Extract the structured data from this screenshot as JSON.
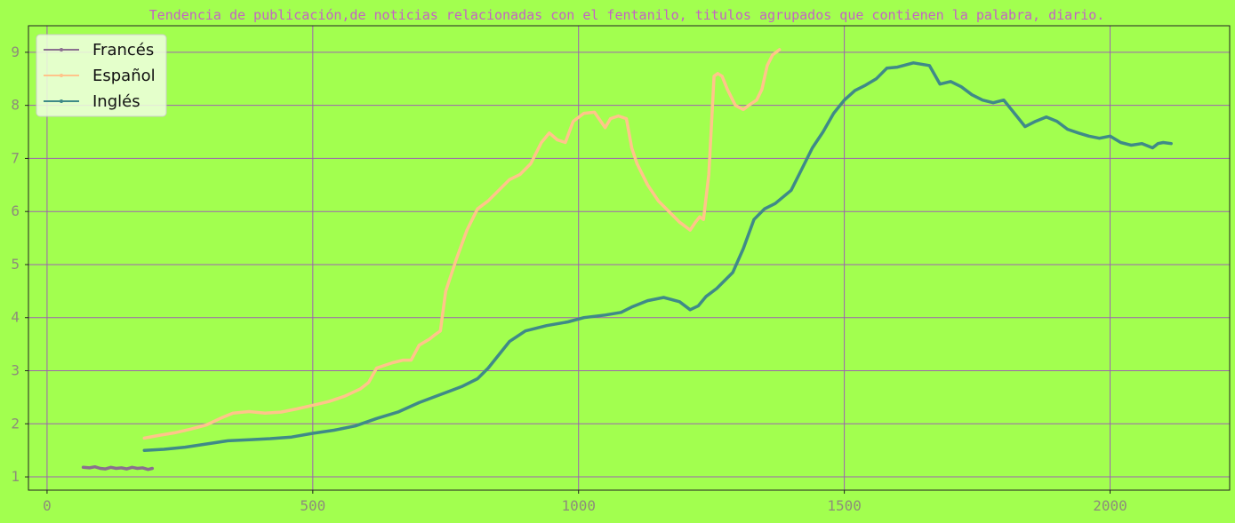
{
  "colors": {
    "background": "#a2ff4f",
    "plot_background": "#a2ff4f",
    "grid": "#9e63b0",
    "frame": "#222222",
    "tick_label": "#8d8d7a",
    "title": "#c462c4",
    "legend_background": "#f0ffe0"
  },
  "chart_data": {
    "type": "line",
    "title": "Tendencia de publicación,de noticias relacionadas con el fentanilo, titulos agrupados que contienen la palabra, diario.",
    "xlabel": "",
    "ylabel": "",
    "xlim": [
      -35,
      2225
    ],
    "ylim": [
      0.75,
      9.5
    ],
    "xticks": [
      0,
      500,
      1000,
      1500,
      2000
    ],
    "yticks": [
      1,
      2,
      3,
      4,
      5,
      6,
      7,
      8,
      9
    ],
    "grid": true,
    "legend_position": "top-left",
    "series": [
      {
        "name": "Francés",
        "color": "#8a6f8f",
        "x": [
          68,
          80,
          90,
          100,
          110,
          120,
          130,
          140,
          150,
          160,
          170,
          180,
          190,
          198
        ],
        "y": [
          1.18,
          1.17,
          1.19,
          1.16,
          1.15,
          1.18,
          1.16,
          1.17,
          1.15,
          1.18,
          1.16,
          1.17,
          1.14,
          1.16
        ]
      },
      {
        "name": "Español",
        "color": "#ffc48a",
        "x": [
          183,
          210,
          240,
          270,
          300,
          330,
          350,
          380,
          410,
          440,
          470,
          500,
          530,
          560,
          590,
          605,
          620,
          650,
          670,
          685,
          700,
          720,
          730,
          740,
          750,
          770,
          790,
          810,
          830,
          850,
          870,
          890,
          910,
          930,
          945,
          960,
          975,
          990,
          1010,
          1030,
          1050,
          1060,
          1075,
          1090,
          1100,
          1110,
          1130,
          1150,
          1170,
          1190,
          1210,
          1220,
          1228,
          1235,
          1245,
          1255,
          1262,
          1270,
          1280,
          1295,
          1310,
          1320,
          1335,
          1345,
          1355,
          1365,
          1378
        ],
        "y": [
          1.73,
          1.78,
          1.83,
          1.9,
          1.98,
          2.12,
          2.2,
          2.23,
          2.2,
          2.22,
          2.28,
          2.35,
          2.42,
          2.52,
          2.66,
          2.78,
          3.05,
          3.15,
          3.2,
          3.2,
          3.48,
          3.6,
          3.68,
          3.75,
          4.5,
          5.1,
          5.65,
          6.05,
          6.2,
          6.4,
          6.6,
          6.7,
          6.9,
          7.3,
          7.48,
          7.35,
          7.3,
          7.7,
          7.85,
          7.87,
          7.58,
          7.75,
          7.8,
          7.75,
          7.2,
          6.9,
          6.5,
          6.2,
          6.0,
          5.8,
          5.65,
          5.8,
          5.9,
          5.85,
          6.7,
          8.55,
          8.6,
          8.55,
          8.3,
          8.0,
          7.92,
          8.0,
          8.1,
          8.3,
          8.75,
          8.95,
          9.05
        ]
      },
      {
        "name": "Inglés",
        "color": "#3f8a88",
        "x": [
          183,
          220,
          260,
          300,
          340,
          380,
          420,
          460,
          500,
          540,
          580,
          620,
          660,
          700,
          740,
          780,
          810,
          830,
          850,
          870,
          900,
          940,
          980,
          1010,
          1050,
          1080,
          1100,
          1130,
          1160,
          1190,
          1210,
          1225,
          1240,
          1260,
          1290,
          1310,
          1330,
          1350,
          1370,
          1400,
          1420,
          1440,
          1460,
          1480,
          1500,
          1520,
          1540,
          1560,
          1580,
          1600,
          1630,
          1660,
          1680,
          1700,
          1720,
          1740,
          1760,
          1780,
          1800,
          1820,
          1840,
          1860,
          1880,
          1900,
          1920,
          1940,
          1960,
          1980,
          2000,
          2020,
          2040,
          2060,
          2080,
          2090,
          2100,
          2115
        ],
        "y": [
          1.5,
          1.52,
          1.56,
          1.62,
          1.68,
          1.7,
          1.72,
          1.75,
          1.82,
          1.88,
          1.96,
          2.1,
          2.22,
          2.4,
          2.55,
          2.7,
          2.85,
          3.05,
          3.3,
          3.55,
          3.75,
          3.85,
          3.92,
          4.0,
          4.05,
          4.1,
          4.2,
          4.32,
          4.38,
          4.3,
          4.15,
          4.22,
          4.4,
          4.55,
          4.85,
          5.3,
          5.85,
          6.05,
          6.15,
          6.4,
          6.8,
          7.2,
          7.5,
          7.85,
          8.1,
          8.28,
          8.38,
          8.5,
          8.7,
          8.72,
          8.8,
          8.75,
          8.4,
          8.45,
          8.35,
          8.2,
          8.1,
          8.05,
          8.1,
          7.85,
          7.6,
          7.7,
          7.78,
          7.7,
          7.55,
          7.48,
          7.42,
          7.38,
          7.42,
          7.3,
          7.25,
          7.28,
          7.2,
          7.28,
          7.3,
          7.28
        ]
      }
    ]
  }
}
